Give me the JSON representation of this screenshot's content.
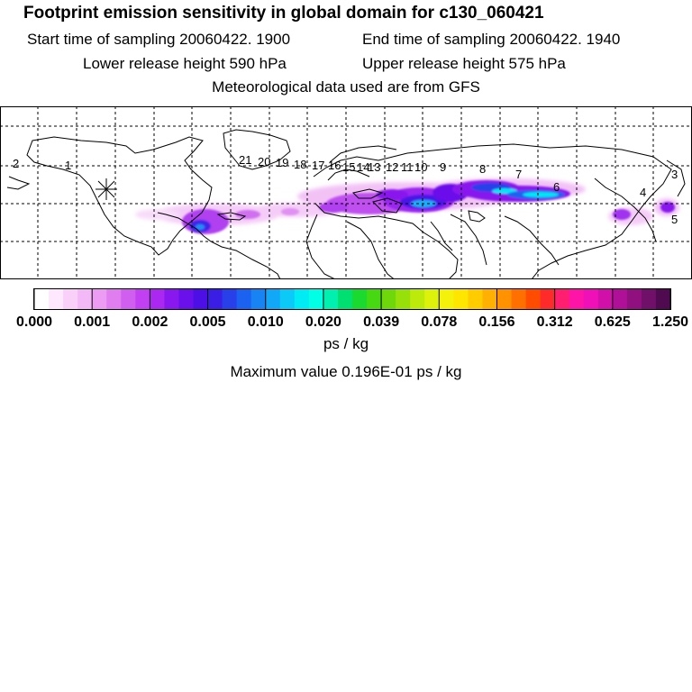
{
  "header": {
    "title": "Footprint emission sensitivity in global domain for c130_060421",
    "start_label": "Start time of sampling 20060422.  1900",
    "end_label": "End time of sampling 20060422.  1940",
    "lower_label": "Lower release height  590 hPa",
    "upper_label": "Upper release height  575 hPa",
    "met_label": "Meteorological data used are from GFS"
  },
  "map": {
    "trajectory_labels": [
      "1",
      "2",
      "3",
      "4",
      "5",
      "6",
      "7",
      "8",
      "9",
      "10",
      "11",
      "12",
      "13",
      "14",
      "15",
      "16",
      "17",
      "18",
      "19",
      "20",
      "21"
    ],
    "release_marker": "release-point-star"
  },
  "colorbar": {
    "tick_labels": [
      "0.000",
      "0.001",
      "0.002",
      "0.005",
      "0.010",
      "0.020",
      "0.039",
      "0.078",
      "0.156",
      "0.312",
      "0.625",
      "1.250"
    ],
    "colors": [
      "#ffffff",
      "#fde8fd",
      "#f8d0f8",
      "#f3b8f6",
      "#ec9cf3",
      "#e07ef0",
      "#d05ff0",
      "#c040f2",
      "#aa28f0",
      "#8818ee",
      "#6a10ea",
      "#4c10e6",
      "#3a1ee4",
      "#2840ea",
      "#1c62f0",
      "#1884f4",
      "#12a8f8",
      "#0ccaf8",
      "#00ecf4",
      "#00ffe4",
      "#00f0b0",
      "#00e070",
      "#1ada30",
      "#46d810",
      "#6ed80a",
      "#98e00a",
      "#bcea0a",
      "#dcf20a",
      "#f4f20a",
      "#ffe600",
      "#ffcc00",
      "#ffb000",
      "#ff9200",
      "#ff7000",
      "#ff4c00",
      "#ff2a2a",
      "#ff1e70",
      "#ff14a8",
      "#f010b8",
      "#d010a8",
      "#b01098",
      "#901080",
      "#701068",
      "#500a50"
    ],
    "unit": "ps / kg",
    "max_value": "Maximum value  0.196E-01 ps / kg"
  }
}
